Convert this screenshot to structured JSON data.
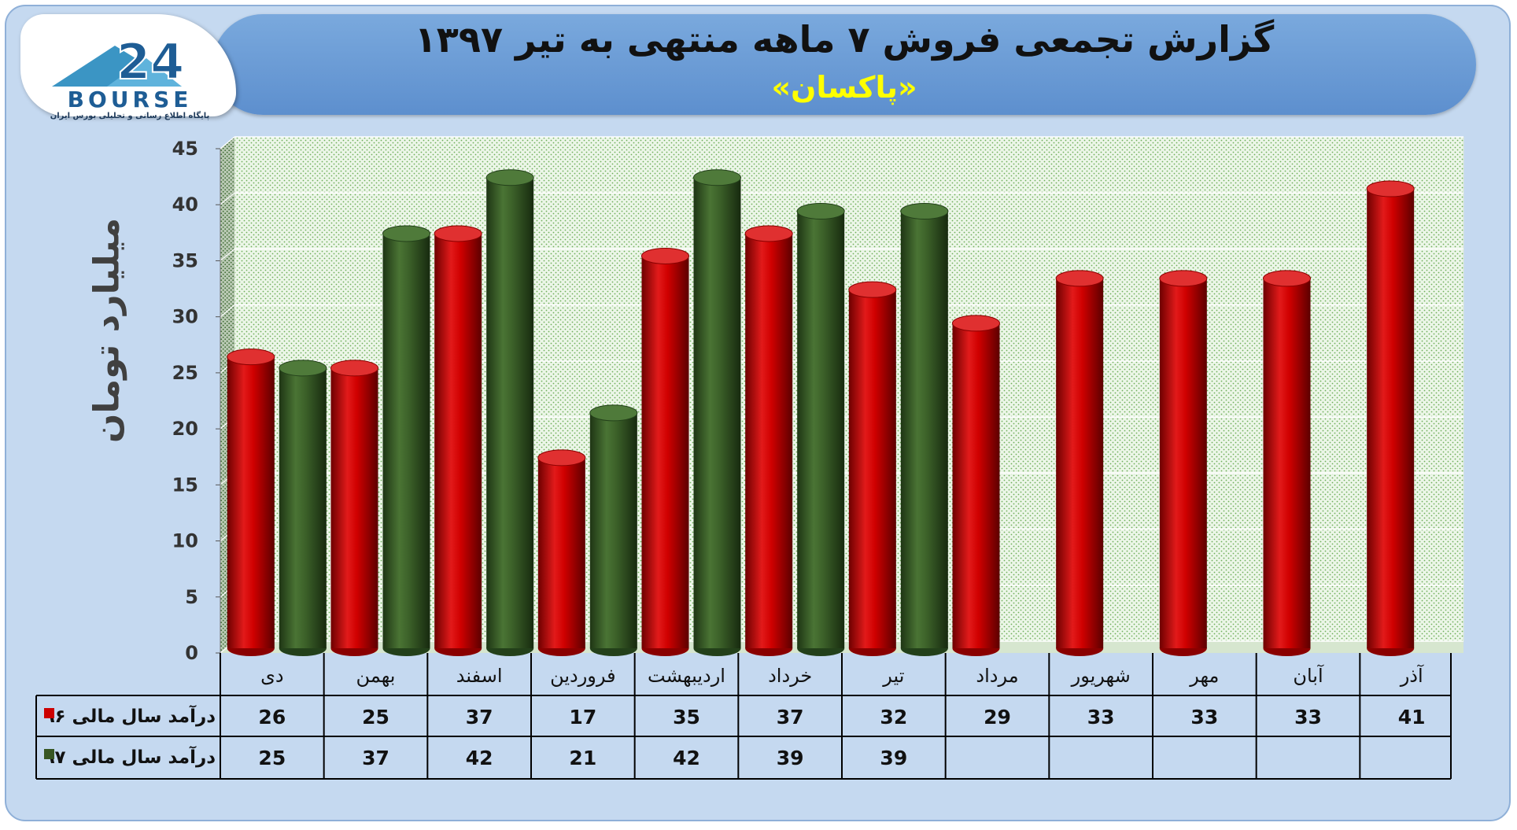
{
  "header": {
    "title": "گزارش تجمعی فروش ۷ ماهه منتهی به تیر ۱۳۹۷",
    "subtitle": "«پاکسان»"
  },
  "logo": {
    "word": "BOURSE",
    "tagline": "پایگاه اطلاع رسانی و تحلیلی بورس ایران"
  },
  "colors": {
    "series_96": "#cc0000",
    "series_97": "#375623",
    "plot_background": "#eaf4e6",
    "header_bar": "#5d8fce",
    "frame": "#c5d9f0"
  },
  "chart_data": {
    "type": "bar",
    "ylabel": "میلیارد تومان",
    "ylim": [
      0,
      45
    ],
    "yticks": [
      0,
      5,
      10,
      15,
      20,
      25,
      30,
      35,
      40,
      45
    ],
    "grid": true,
    "legend": "data-table",
    "categories": [
      "دی",
      "بهمن",
      "اسفند",
      "فروردین",
      "اردیبهشت",
      "خرداد",
      "تیر",
      "مرداد",
      "شهریور",
      "مهر",
      "آبان",
      "آذر"
    ],
    "series": [
      {
        "name": "درآمد سال مالی ۹۶",
        "values": [
          26,
          25,
          37,
          17,
          35,
          37,
          32,
          29,
          33,
          33,
          33,
          41
        ]
      },
      {
        "name": "درآمد سال مالی ۹۷",
        "values": [
          25,
          37,
          42,
          21,
          42,
          39,
          39,
          null,
          null,
          null,
          null,
          null
        ]
      }
    ]
  }
}
